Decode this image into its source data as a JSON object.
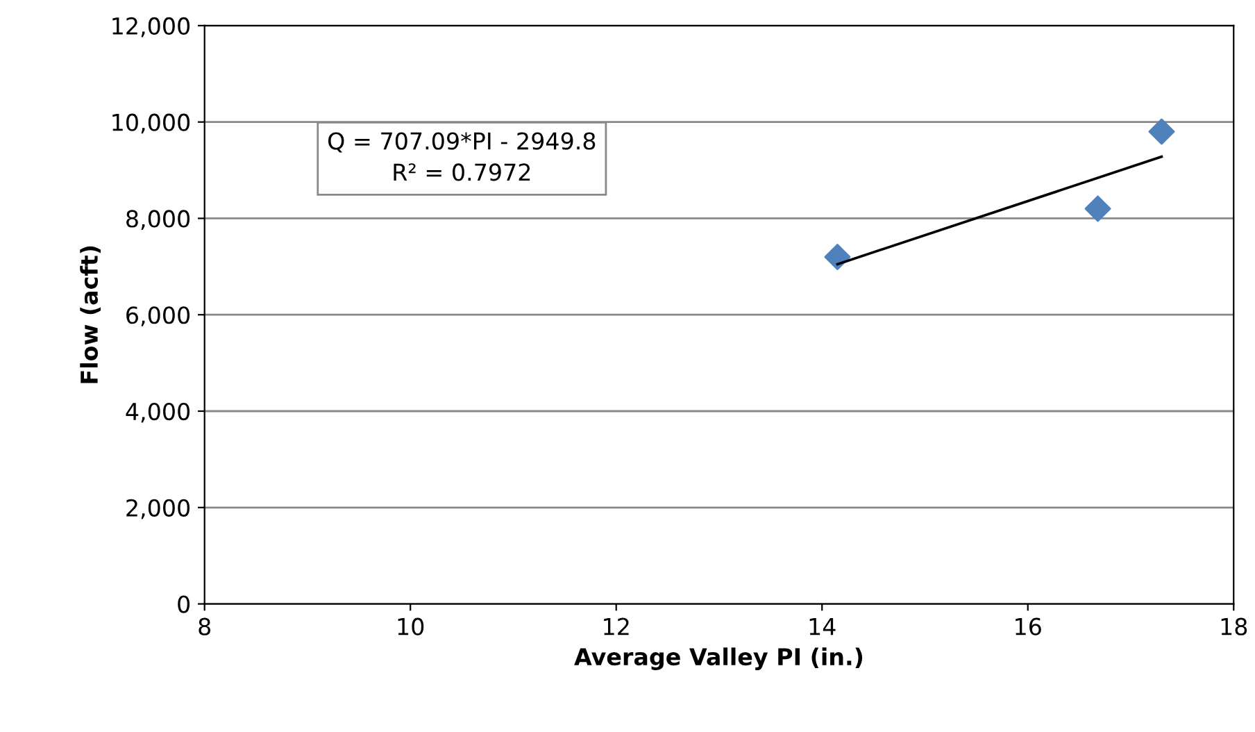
{
  "chart_data": {
    "type": "scatter",
    "xlabel": "Average Valley PI (in.)",
    "ylabel": "Flow (acft)",
    "series": [
      {
        "color": "#4f81bd",
        "marker": "diamond",
        "x": [
          14.15,
          16.68,
          17.3
        ],
        "values": [
          7200,
          8200,
          9800
        ]
      },
      {
        "type": "line",
        "color": "#000000",
        "marker": "none",
        "x": [
          14.15,
          17.3
        ],
        "values": [
          7050,
          9280
        ]
      }
    ],
    "annotations": [
      "Q = 707.09*PI - 2949.8\nR² = 0.7972"
    ],
    "xlim": [
      8,
      18
    ],
    "xticks": [
      8,
      10,
      12,
      14,
      16,
      18
    ],
    "ylim": [
      0,
      12000
    ],
    "yticks": [
      {
        "value": 0,
        "label": "0"
      },
      {
        "value": 2000,
        "label": "2,000"
      },
      {
        "value": 4000,
        "label": "4,000"
      },
      {
        "value": 6000,
        "label": "6,000"
      },
      {
        "value": 8000,
        "label": "8,000"
      },
      {
        "value": 10000,
        "label": "10,000"
      },
      {
        "value": 12000,
        "label": "12,000"
      }
    ],
    "grid": "y",
    "legend": false
  }
}
